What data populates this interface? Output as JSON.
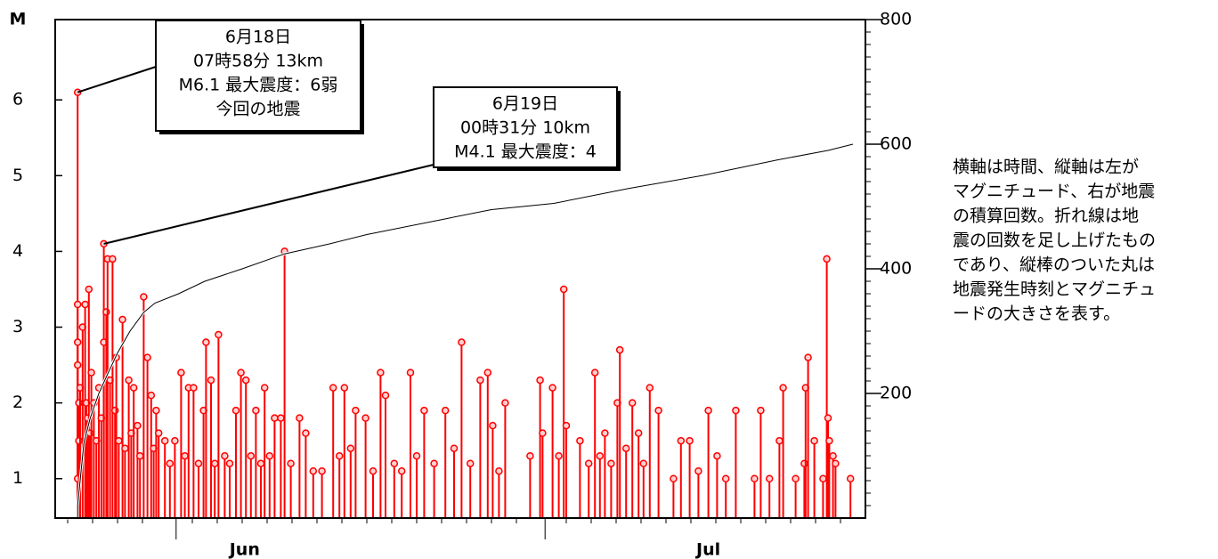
{
  "chart_data": {
    "type": "stem",
    "y_label": "M",
    "color": "#ff0000",
    "xlim": [
      0,
      65
    ],
    "xticks": [
      {
        "value": 15.2,
        "label": "Jun"
      },
      {
        "value": 52.4,
        "label": "Jul"
      }
    ],
    "xmajorticks": [
      9.7,
      39.3
    ],
    "xminorticks": [
      1,
      3,
      5,
      7,
      11,
      13,
      15,
      17,
      19,
      21,
      23,
      25,
      27,
      29,
      31,
      33,
      35,
      37,
      41,
      43,
      45,
      47,
      49,
      51,
      53,
      55,
      57,
      59,
      61,
      63
    ],
    "ylim": [
      0.48,
      7.06
    ],
    "yticks": [
      1,
      2,
      3,
      4,
      5,
      6
    ],
    "y2lim": [
      0,
      800
    ],
    "y2ticks": [
      200,
      400,
      600,
      800
    ],
    "y2minorticks": [
      20,
      40,
      60,
      80,
      100,
      120,
      140,
      160,
      180,
      220,
      240,
      260,
      280,
      300,
      320,
      340,
      360,
      380,
      420,
      440,
      460,
      480,
      500,
      520,
      540,
      560,
      580,
      620,
      640,
      660,
      680,
      700,
      720,
      740,
      760,
      780
    ],
    "x": [
      1.8,
      1.8,
      1.8,
      1.8,
      1.8,
      1.9,
      1.9,
      2.0,
      2.2,
      2.4,
      2.5,
      2.6,
      2.7,
      2.8,
      2.9,
      3.1,
      3.3,
      3.5,
      3.7,
      3.9,
      3.9,
      4.1,
      4.2,
      4.4,
      4.6,
      4.8,
      4.9,
      5.1,
      5.4,
      5.6,
      5.9,
      6.1,
      6.3,
      6.6,
      6.8,
      7.1,
      7.4,
      7.7,
      7.9,
      8.1,
      8.3,
      8.8,
      9.2,
      9.6,
      10.1,
      10.4,
      10.7,
      11.1,
      11.5,
      11.9,
      12.1,
      12.5,
      12.8,
      13.1,
      13.6,
      14.0,
      14.5,
      14.9,
      15.3,
      15.7,
      16.1,
      16.5,
      16.8,
      17.2,
      17.6,
      18.1,
      18.4,
      18.9,
      19.6,
      20.1,
      20.7,
      21.4,
      22.3,
      22.8,
      23.2,
      23.7,
      24.1,
      24.9,
      25.5,
      26.1,
      26.5,
      27.2,
      27.8,
      28.5,
      29.0,
      29.6,
      30.4,
      31.3,
      32.0,
      32.6,
      33.3,
      34.1,
      34.7,
      35.1,
      35.6,
      36.1,
      38.1,
      38.9,
      39.1,
      39.9,
      40.4,
      40.8,
      41.0,
      42.1,
      42.8,
      43.3,
      43.7,
      44.1,
      44.6,
      45.1,
      45.3,
      45.8,
      46.3,
      46.8,
      47.2,
      47.7,
      48.4,
      49.6,
      50.2,
      50.9,
      51.6,
      52.4,
      53.1,
      53.8,
      54.6,
      56.1,
      56.6,
      57.3,
      58.1,
      58.4,
      59.4,
      60.1,
      60.2,
      60.4,
      60.9,
      61.6,
      61.9,
      62.0,
      62.1,
      62.4,
      62.6,
      63.8
    ],
    "values": [
      6.1,
      3.3,
      2.8,
      2.5,
      1.0,
      2.0,
      1.5,
      2.2,
      3.0,
      3.3,
      2.0,
      1.8,
      3.5,
      1.6,
      2.4,
      2.0,
      1.5,
      2.2,
      1.8,
      4.1,
      2.8,
      3.2,
      3.9,
      2.3,
      3.9,
      1.9,
      2.6,
      1.5,
      3.1,
      1.4,
      2.3,
      1.6,
      2.2,
      1.7,
      1.3,
      3.4,
      2.6,
      2.1,
      1.4,
      1.9,
      1.6,
      1.5,
      1.2,
      1.5,
      2.4,
      1.3,
      2.2,
      2.2,
      1.2,
      1.9,
      2.8,
      2.3,
      1.2,
      2.9,
      1.3,
      1.2,
      1.9,
      2.4,
      2.3,
      1.3,
      1.9,
      1.2,
      2.2,
      1.3,
      1.8,
      1.8,
      4.0,
      1.2,
      1.8,
      1.6,
      1.1,
      1.1,
      2.2,
      1.3,
      2.2,
      1.4,
      1.9,
      1.8,
      1.1,
      2.4,
      2.1,
      1.2,
      1.1,
      2.4,
      1.3,
      1.9,
      1.2,
      1.9,
      1.4,
      2.8,
      1.2,
      2.3,
      2.4,
      1.7,
      1.1,
      2.0,
      1.3,
      2.3,
      1.6,
      2.2,
      1.3,
      3.5,
      1.7,
      1.5,
      1.2,
      2.4,
      1.3,
      1.6,
      1.2,
      2.0,
      2.7,
      1.4,
      2.0,
      1.6,
      1.2,
      2.2,
      1.9,
      1.0,
      1.5,
      1.5,
      1.1,
      1.9,
      1.3,
      1.0,
      1.9,
      1.0,
      1.9,
      1.0,
      1.5,
      2.2,
      1.0,
      1.2,
      2.2,
      2.6,
      1.5,
      1.0,
      3.9,
      1.8,
      1.5,
      1.3,
      1.2,
      1.0
    ],
    "cumulative": {
      "axis": "y2",
      "color": "#000000",
      "x": [
        0,
        1.8,
        1.8,
        2.0,
        2.3,
        2.8,
        3.5,
        4.2,
        5,
        6,
        7.1,
        8,
        9.9,
        12,
        15,
        18.4,
        22,
        25,
        31,
        35,
        40,
        46,
        52,
        58,
        62,
        64.0
      ],
      "values": [
        0,
        0,
        20,
        60,
        120,
        160,
        200,
        231,
        265,
        300,
        330,
        345,
        360,
        380,
        400,
        424,
        440,
        455,
        479,
        495,
        505,
        529,
        550,
        575,
        590,
        600
      ]
    },
    "annotations": [
      {
        "lines": [
          "6月18日",
          "07時58分 13km",
          "M6.1 最大震度：6弱",
          "今回の地震"
        ]
      },
      {
        "lines": [
          "6月19日",
          "00時31分 10km",
          "M4.1 最大震度：4"
        ]
      }
    ],
    "caption": [
      "横軸は時間、縦軸は左が",
      "マグニチュード、右が地震",
      "の積算回数。折れ線は地",
      "震の回数を足し上げたもの",
      "であり、縦棒のついた丸は",
      "地震発生時刻とマグニチュ",
      "ードの大きさを表す。"
    ]
  }
}
